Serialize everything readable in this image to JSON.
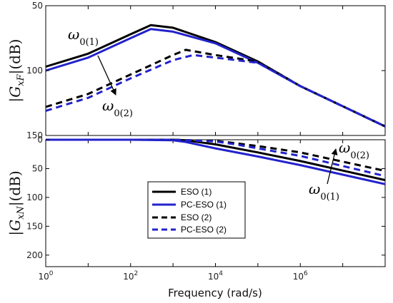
{
  "chart_data": [
    {
      "type": "line",
      "ylabel": "|G_{xF}|(dB)",
      "xscale": "log",
      "xlim": [
        1,
        100000000
      ],
      "ylim": [
        50,
        150
      ],
      "yaxis_reversed": true,
      "yticks": [
        {
          "value": 50,
          "label": "50"
        },
        {
          "value": 100,
          "label": "100"
        },
        {
          "value": 150,
          "label": "150"
        }
      ],
      "series": [
        {
          "name": "ESO (1)",
          "color": "#000000",
          "dash": "solid",
          "x": [
            1,
            10,
            100,
            300,
            1000,
            10000,
            100000,
            1000000,
            100000000
          ],
          "y": [
            97,
            87,
            72,
            65,
            67,
            78,
            93,
            112,
            143
          ]
        },
        {
          "name": "PC-ESO (1)",
          "color": "#2222cc",
          "dash": "solid",
          "x": [
            1,
            10,
            100,
            300,
            1000,
            10000,
            100000,
            1000000,
            100000000
          ],
          "y": [
            100,
            90,
            75,
            68,
            70,
            79,
            94,
            112,
            143
          ]
        },
        {
          "name": "ESO (2)",
          "color": "#000000",
          "dash": "dash",
          "x": [
            1,
            10,
            100,
            1000,
            2000,
            10000,
            100000,
            1000000,
            100000000
          ],
          "y": [
            128,
            118,
            103,
            88,
            84,
            88,
            93,
            112,
            143
          ]
        },
        {
          "name": "PC-ESO (2)",
          "color": "#2222cc",
          "dash": "dash",
          "x": [
            1,
            10,
            100,
            1000,
            3000,
            10000,
            100000,
            1000000,
            100000000
          ],
          "y": [
            131,
            121,
            106,
            92,
            88,
            90,
            94,
            112,
            143
          ]
        }
      ],
      "annotations": [
        {
          "symbol": "ω",
          "subscript": "0(1)"
        },
        {
          "symbol": "ω",
          "subscript": "0(2)"
        }
      ]
    },
    {
      "type": "line",
      "ylabel": "|G_{xN}|(dB)",
      "xlabel": "Frequency  (rad/s)",
      "xscale": "log",
      "xlim": [
        1,
        100000000
      ],
      "ylim": [
        0,
        220
      ],
      "yaxis_reversed": true,
      "xticks": [
        {
          "value": 1,
          "base": "10",
          "exp": "0"
        },
        {
          "value": 100,
          "base": "10",
          "exp": "2"
        },
        {
          "value": 10000,
          "base": "10",
          "exp": "4"
        },
        {
          "value": 1000000,
          "base": "10",
          "exp": "6"
        }
      ],
      "yticks": [
        {
          "value": 0,
          "label": "0"
        },
        {
          "value": 50,
          "label": "50"
        },
        {
          "value": 100,
          "label": "100"
        },
        {
          "value": 150,
          "label": "150"
        },
        {
          "value": 200,
          "label": "200"
        }
      ],
      "series": [
        {
          "name": "ESO (1)",
          "color": "#000000",
          "dash": "solid",
          "x": [
            1,
            100,
            1000,
            2000,
            10000,
            100000,
            1000000,
            100000000
          ],
          "y": [
            0,
            0,
            0,
            1,
            8,
            22,
            37,
            70
          ]
        },
        {
          "name": "PC-ESO (1)",
          "color": "#2222cc",
          "dash": "solid",
          "x": [
            1,
            100,
            1000,
            2000,
            10000,
            100000,
            1000000,
            100000000
          ],
          "y": [
            0,
            0,
            1,
            4,
            15,
            29,
            44,
            77
          ]
        },
        {
          "name": "ESO (2)",
          "color": "#000000",
          "dash": "dash",
          "x": [
            1,
            1000,
            10000,
            30000,
            100000,
            1000000,
            100000000
          ],
          "y": [
            0,
            0,
            2,
            6,
            11,
            22,
            54
          ]
        },
        {
          "name": "PC-ESO (2)",
          "color": "#2222cc",
          "dash": "dash",
          "x": [
            1,
            1000,
            10000,
            30000,
            100000,
            1000000,
            100000000
          ],
          "y": [
            0,
            0,
            3,
            8,
            15,
            28,
            63
          ]
        }
      ],
      "legend": {
        "placement": "center",
        "entries": [
          {
            "label": "ESO (1)",
            "color": "#000000",
            "dash": "solid"
          },
          {
            "label": "PC-ESO (1)",
            "color": "#2222cc",
            "dash": "solid"
          },
          {
            "label": "ESO (2)",
            "color": "#000000",
            "dash": "dash"
          },
          {
            "label": "PC-ESO (2)",
            "color": "#2222cc",
            "dash": "dash"
          }
        ]
      },
      "annotations": [
        {
          "symbol": "ω",
          "subscript": "0(2)"
        },
        {
          "symbol": "ω",
          "subscript": "0(1)"
        }
      ]
    }
  ]
}
